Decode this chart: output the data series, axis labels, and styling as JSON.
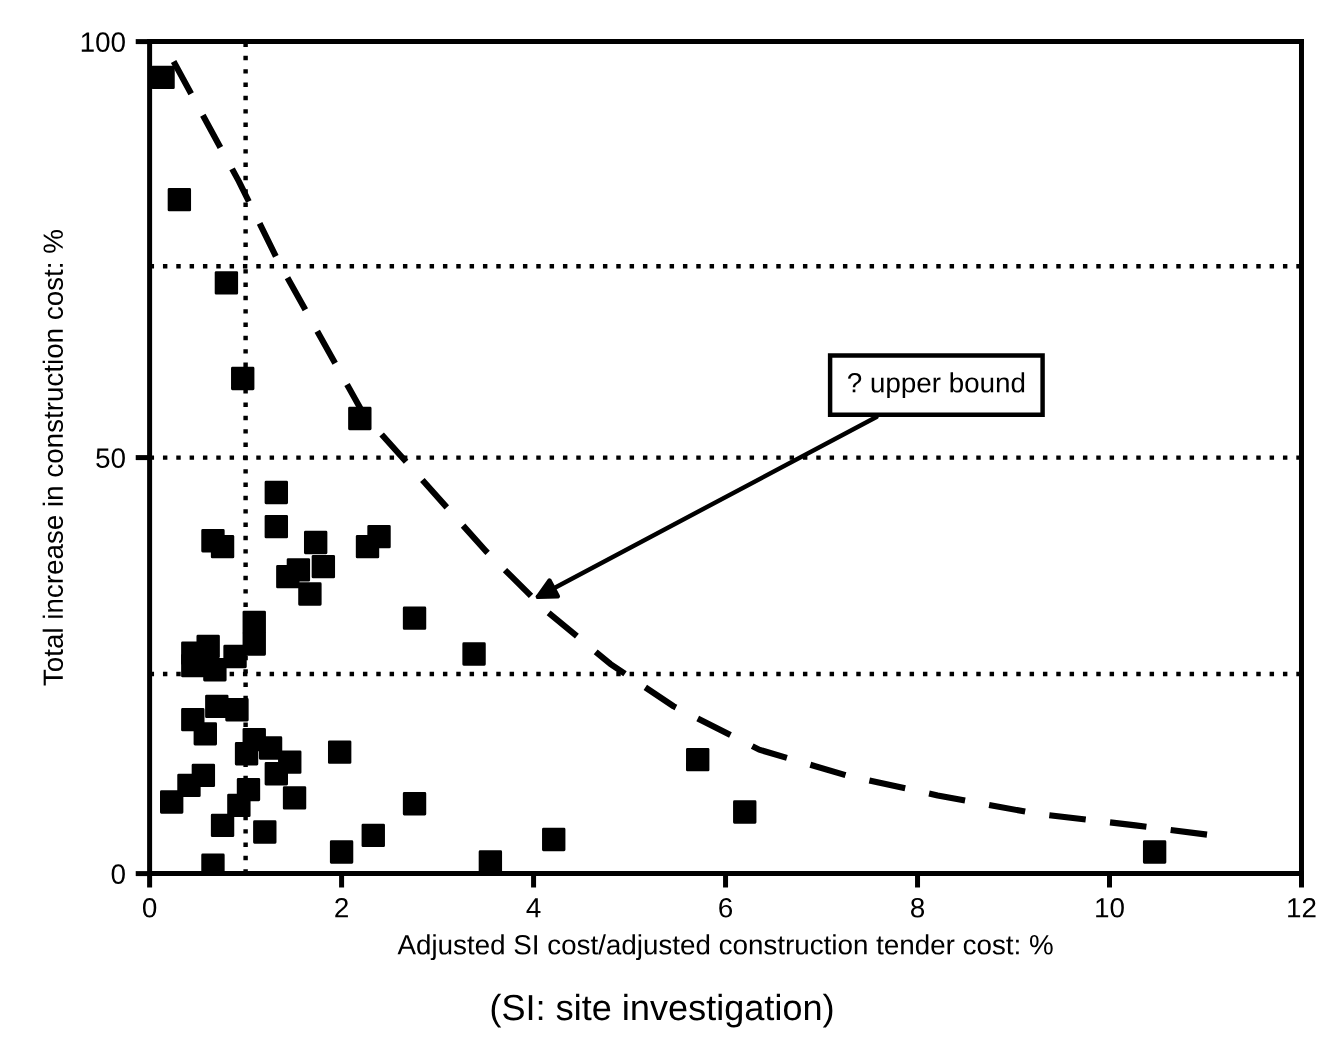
{
  "chart_data": {
    "type": "scatter",
    "xlabel": "Adjusted SI cost/adjusted construction tender cost: %",
    "ylabel": "Total increase in construction cost: %",
    "series": [
      {
        "color": "#000000",
        "marker": "square",
        "x": [
          0.14,
          0.31,
          0.8,
          0.97,
          2.19,
          1.32,
          1.32,
          0.66,
          0.76,
          1.73,
          2.27,
          2.39,
          1.81,
          1.44,
          1.55,
          1.67,
          2.76,
          1.09,
          1.09,
          0.45,
          0.61,
          0.45,
          0.68,
          0.89,
          3.38,
          0.45,
          0.58,
          0.7,
          0.91,
          1.01,
          1.09,
          1.26,
          1.46,
          1.32,
          1.98,
          0.56,
          0.41,
          0.23,
          1.03,
          0.93,
          1.51,
          0.76,
          1.2,
          2.76,
          0.66,
          2.0,
          2.33,
          3.55,
          5.71,
          6.2,
          4.21,
          10.47
        ],
        "values": [
          95.7,
          81,
          71,
          59.5,
          54.7,
          45.8,
          41.7,
          40,
          39.3,
          39.8,
          39.3,
          40.5,
          36.9,
          35.7,
          36.5,
          33.6,
          30.7,
          30.2,
          27.6,
          26.5,
          27.3,
          25,
          24.5,
          26.1,
          26.4,
          18.5,
          16.8,
          20.1,
          19.7,
          14.4,
          16.1,
          15.1,
          13.4,
          12,
          14.6,
          11.8,
          10.6,
          8.6,
          10.1,
          8.2,
          9.1,
          5.8,
          5,
          8.4,
          1,
          2.6,
          4.6,
          1.4,
          13.7,
          7.4,
          4.1,
          2.6
        ]
      },
      {
        "type": "line",
        "color": "#000000",
        "line_style": "dashed",
        "marker": "none",
        "x": [
          0.25,
          0.93,
          1.34,
          2.23,
          3.5,
          4.12,
          4.8,
          5.46,
          6.35,
          7.26,
          8.21,
          9.24,
          10.27,
          11.07
        ],
        "values": [
          97.6,
          83.2,
          73.6,
          55.2,
          38.8,
          31.7,
          25.2,
          20.1,
          14.9,
          11.8,
          9.4,
          7.2,
          5.8,
          4.6
        ]
      }
    ],
    "xlim": [
      0,
      12
    ],
    "xticks": [
      0,
      2,
      4,
      6,
      8,
      10,
      12
    ],
    "ylim": [
      0,
      100
    ],
    "yticks": [
      0,
      50,
      100
    ],
    "grid": false,
    "legend": false,
    "ref_lines": [
      {
        "axis": "x",
        "value": 1,
        "line_style": "dotted",
        "color": "#000000"
      },
      {
        "axis": "y",
        "value": 73,
        "line_style": "dotted",
        "color": "#000000"
      },
      {
        "axis": "y",
        "value": 50,
        "line_style": "dotted",
        "color": "#000000"
      },
      {
        "axis": "y",
        "value": 24,
        "line_style": "dotted",
        "color": "#000000"
      }
    ],
    "annotations": [
      {
        "text": "? upper bound",
        "x": 4.0,
        "y": 33
      },
      "(SI: site investigation)"
    ]
  }
}
